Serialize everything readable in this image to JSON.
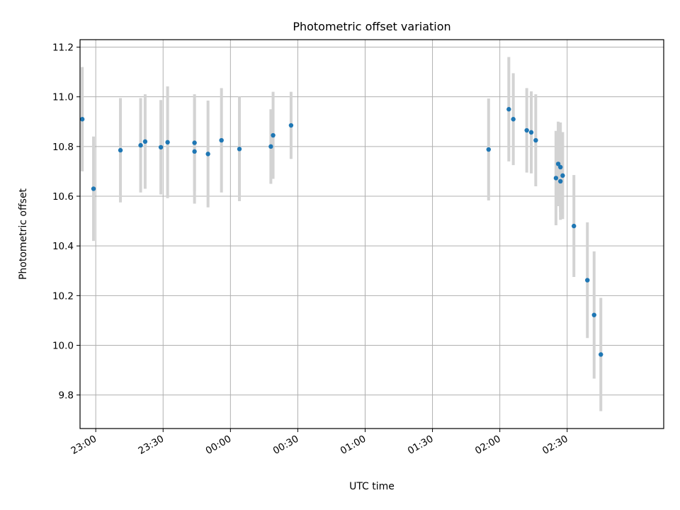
{
  "chart_data": {
    "type": "scatter",
    "title": "Photometric offset variation",
    "xlabel": "UTC time",
    "ylabel": "Photometric offset",
    "x_unit": "time (HH:MM), continuing past midnight",
    "xlim": [
      "22:53",
      "03:13"
    ],
    "ylim": [
      9.665,
      11.23
    ],
    "grid": true,
    "x_ticks": [
      "23:00",
      "23:30",
      "00:00",
      "00:30",
      "01:00",
      "01:30",
      "02:00",
      "02:30"
    ],
    "y_ticks": [
      "9.8",
      "10.0",
      "10.2",
      "10.4",
      "10.6",
      "10.8",
      "11.0",
      "11.2"
    ],
    "marker_color": "#1f77b4",
    "errorbar_color": "#d3d3d3",
    "points": [
      {
        "x": "22:54",
        "y": 10.91,
        "err": 0.21
      },
      {
        "x": "22:59",
        "y": 10.63,
        "err": 0.21
      },
      {
        "x": "23:11",
        "y": 10.785,
        "err": 0.21
      },
      {
        "x": "23:20",
        "y": 10.805,
        "err": 0.19
      },
      {
        "x": "23:22",
        "y": 10.82,
        "err": 0.19
      },
      {
        "x": "23:29",
        "y": 10.797,
        "err": 0.19
      },
      {
        "x": "23:32",
        "y": 10.817,
        "err": 0.225
      },
      {
        "x": "23:44",
        "y": 10.815,
        "err": 0.195
      },
      {
        "x": "23:44",
        "y": 10.78,
        "err": 0.21
      },
      {
        "x": "23:50",
        "y": 10.77,
        "err": 0.215
      },
      {
        "x": "23:56",
        "y": 10.825,
        "err": 0.21
      },
      {
        "x": "00:04",
        "y": 10.79,
        "err": 0.21
      },
      {
        "x": "00:18",
        "y": 10.8,
        "err": 0.15
      },
      {
        "x": "00:19",
        "y": 10.845,
        "err": 0.175
      },
      {
        "x": "00:27",
        "y": 10.885,
        "err": 0.135
      },
      {
        "x": "01:55",
        "y": 10.788,
        "err": 0.205
      },
      {
        "x": "02:04",
        "y": 10.95,
        "err": 0.21
      },
      {
        "x": "02:06",
        "y": 10.91,
        "err": 0.185
      },
      {
        "x": "02:12",
        "y": 10.865,
        "err": 0.17
      },
      {
        "x": "02:14",
        "y": 10.857,
        "err": 0.165
      },
      {
        "x": "02:16",
        "y": 10.825,
        "err": 0.185
      },
      {
        "x": "02:25",
        "y": 10.673,
        "err": 0.19
      },
      {
        "x": "02:26",
        "y": 10.73,
        "err": 0.17
      },
      {
        "x": "02:27",
        "y": 10.717,
        "err": 0.18
      },
      {
        "x": "02:27",
        "y": 10.66,
        "err": 0.155
      },
      {
        "x": "02:28",
        "y": 10.683,
        "err": 0.175
      },
      {
        "x": "02:33",
        "y": 10.48,
        "err": 0.205
      },
      {
        "x": "02:39",
        "y": 10.262,
        "err": 0.233
      },
      {
        "x": "02:42",
        "y": 10.122,
        "err": 0.256
      },
      {
        "x": "02:45",
        "y": 9.963,
        "err": 0.228
      }
    ]
  }
}
